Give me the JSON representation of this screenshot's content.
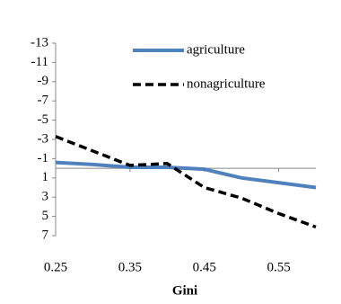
{
  "chart_data": {
    "type": "line",
    "x_label": "Gini",
    "x": [
      0.25,
      0.3,
      0.35,
      0.4,
      0.45,
      0.5,
      0.55,
      0.6
    ],
    "series": [
      {
        "name": "agriculture",
        "color": "#4f81bd",
        "dash": false,
        "values": [
          -0.6,
          -0.4,
          -0.1,
          -0.1,
          0.1,
          1.0,
          1.5,
          2.0
        ]
      },
      {
        "name": "nonagriculture",
        "color": "#000000",
        "dash": true,
        "values": [
          -3.3,
          -1.8,
          -0.3,
          -0.5,
          2.0,
          3.1,
          4.7,
          6.1
        ]
      }
    ],
    "xlim": [
      0.25,
      0.6
    ],
    "xticks": [
      0.25,
      0.35,
      0.45,
      0.55
    ],
    "ylim": [
      -13,
      7
    ],
    "yticks": [
      -13,
      -11,
      -9,
      -7,
      -5,
      -3,
      -1,
      1,
      3,
      5,
      7
    ],
    "y_reversed": true,
    "grid": false
  }
}
